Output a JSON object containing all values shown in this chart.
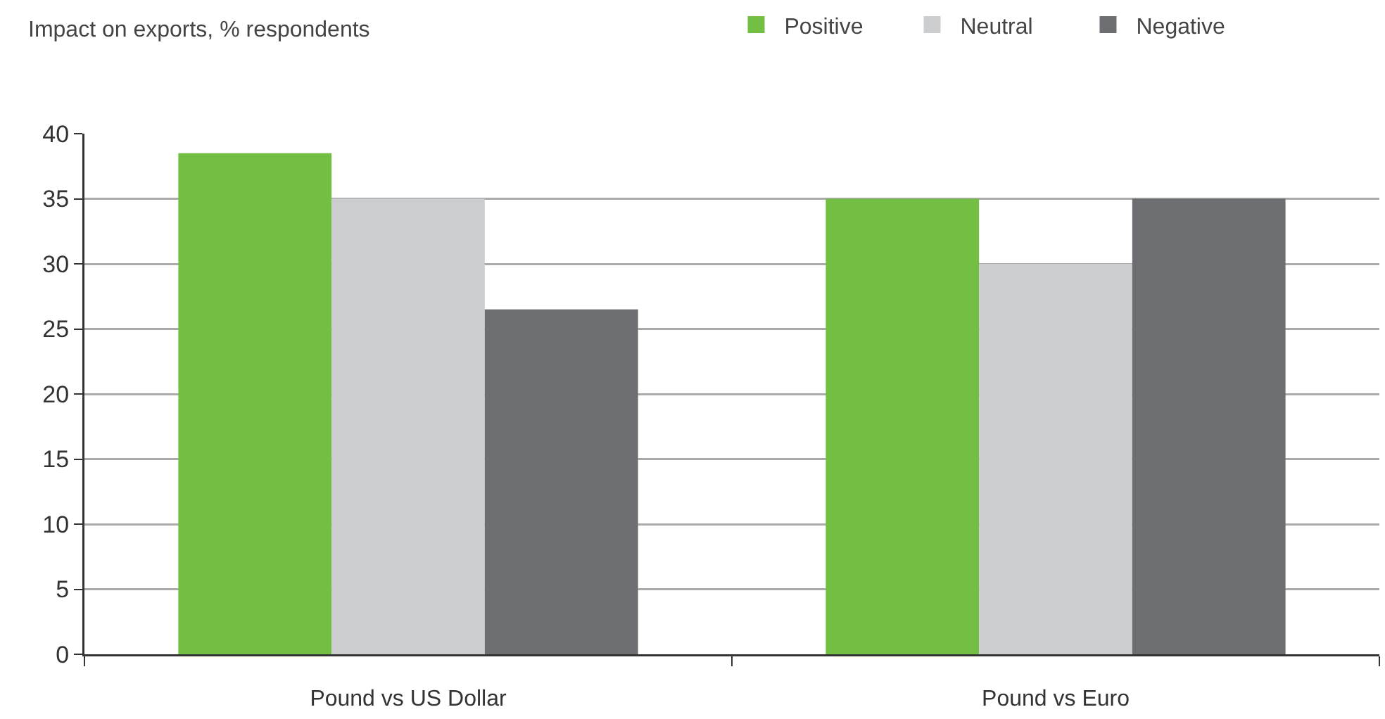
{
  "chart_data": {
    "type": "bar",
    "ylabel": "Impact on exports, % respondents",
    "categories": [
      "Pound vs US Dollar",
      "Pound vs Euro"
    ],
    "series": [
      {
        "name": "Positive",
        "color": "#72bf44",
        "values": [
          38.5,
          35
        ]
      },
      {
        "name": "Neutral",
        "color": "#cccdcf",
        "values": [
          35,
          30
        ]
      },
      {
        "name": "Negative",
        "color": "#6d6e71",
        "values": [
          26.5,
          35
        ]
      }
    ],
    "ylim": [
      0,
      40
    ],
    "yticks": [
      0,
      5,
      10,
      15,
      20,
      25,
      30,
      35,
      40
    ],
    "grid": "y",
    "legend": "top right"
  }
}
